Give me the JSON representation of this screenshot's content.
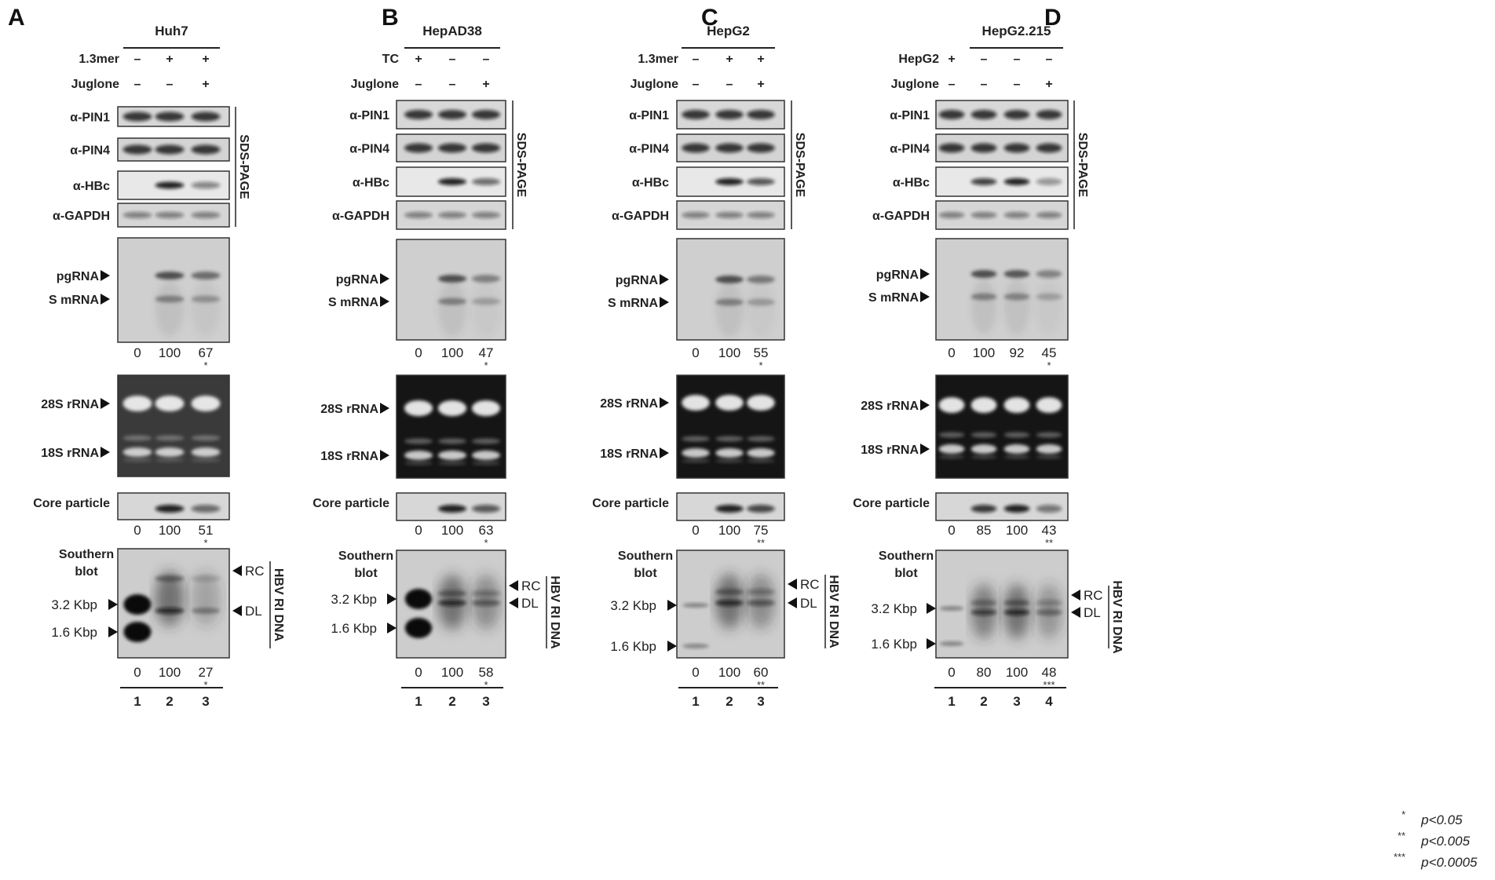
{
  "figure": {
    "panels": [
      {
        "letter": "A",
        "cell_line": "Huh7",
        "conditions": [
          {
            "label": "1.3mer",
            "values": [
              "–",
              "+",
              "+"
            ]
          },
          {
            "label": "Juglone",
            "values": [
              "–",
              "–",
              "+"
            ]
          }
        ],
        "antibodies": [
          "α-PIN1",
          "α-PIN4",
          "α-HBc",
          "α-GAPDH"
        ],
        "northern_quant": [
          "0",
          "100",
          "67"
        ],
        "northern_sig": [
          "",
          "",
          "*"
        ],
        "core_quant": [
          "0",
          "100",
          "51"
        ],
        "core_sig": [
          "",
          "",
          "*"
        ],
        "southern_quant": [
          "0",
          "100",
          "27"
        ],
        "southern_sig": [
          "",
          "",
          "*"
        ],
        "lanes": [
          "1",
          "2",
          "3"
        ]
      },
      {
        "letter": "B",
        "cell_line": "HepAD38",
        "conditions": [
          {
            "label": "TC",
            "values": [
              "+",
              "–",
              "–"
            ]
          },
          {
            "label": "Juglone",
            "values": [
              "–",
              "–",
              "+"
            ]
          }
        ],
        "antibodies": [
          "α-PIN1",
          "α-PIN4",
          "α-HBc",
          "α-GAPDH"
        ],
        "northern_quant": [
          "0",
          "100",
          "47"
        ],
        "northern_sig": [
          "",
          "",
          "*"
        ],
        "core_quant": [
          "0",
          "100",
          "63"
        ],
        "core_sig": [
          "",
          "",
          "*"
        ],
        "southern_quant": [
          "0",
          "100",
          "58"
        ],
        "southern_sig": [
          "",
          "",
          "*"
        ],
        "lanes": [
          "1",
          "2",
          "3"
        ]
      },
      {
        "letter": "C",
        "cell_line": "HepG2",
        "conditions": [
          {
            "label": "1.3mer",
            "values": [
              "–",
              "+",
              "+"
            ]
          },
          {
            "label": "Juglone",
            "values": [
              "–",
              "–",
              "+"
            ]
          }
        ],
        "antibodies": [
          "α-PIN1",
          "α-PIN4",
          "α-HBc",
          "α-GAPDH"
        ],
        "northern_quant": [
          "0",
          "100",
          "55"
        ],
        "northern_sig": [
          "",
          "",
          "*"
        ],
        "core_quant": [
          "0",
          "100",
          "75"
        ],
        "core_sig": [
          "",
          "",
          "**"
        ],
        "southern_quant": [
          "0",
          "100",
          "60"
        ],
        "southern_sig": [
          "",
          "",
          "**"
        ],
        "lanes": [
          "1",
          "2",
          "3"
        ]
      },
      {
        "letter": "D",
        "cell_line": "HepG2.215",
        "conditions": [
          {
            "label": "HepG2",
            "values": [
              "+",
              "–",
              "–",
              "–"
            ]
          },
          {
            "label": "Juglone",
            "values": [
              "–",
              "–",
              "–",
              "+"
            ]
          }
        ],
        "antibodies": [
          "α-PIN1",
          "α-PIN4",
          "α-HBc",
          "α-GAPDH"
        ],
        "northern_quant": [
          "0",
          "100",
          "92",
          "45"
        ],
        "northern_sig": [
          "",
          "",
          "",
          "*"
        ],
        "core_quant": [
          "0",
          "85",
          "100",
          "43"
        ],
        "core_sig": [
          "",
          "",
          "",
          "**"
        ],
        "southern_quant": [
          "0",
          "80",
          "100",
          "48"
        ],
        "southern_sig": [
          "",
          "",
          "",
          "***"
        ],
        "lanes": [
          "1",
          "2",
          "3",
          "4"
        ]
      }
    ],
    "labels": {
      "sds_page": "SDS-PAGE",
      "pgRNA": "pgRNA",
      "s_mRNA": "S mRNA",
      "rrna_28s": "28S rRNA",
      "rrna_18s": "18S rRNA",
      "core_particle": "Core particle",
      "southern_line1": "Southern",
      "southern_line2": "blot",
      "kbp_32": "3.2 Kbp",
      "kbp_16": "1.6 Kbp",
      "rc": "RC",
      "dl": "DL",
      "hbv_ri_dna": "HBV RI DNA"
    },
    "significance_key": [
      {
        "stars": "*",
        "text": "p<0.05"
      },
      {
        "stars": "**",
        "text": "p<0.005"
      },
      {
        "stars": "***",
        "text": "p<0.0005"
      }
    ]
  }
}
